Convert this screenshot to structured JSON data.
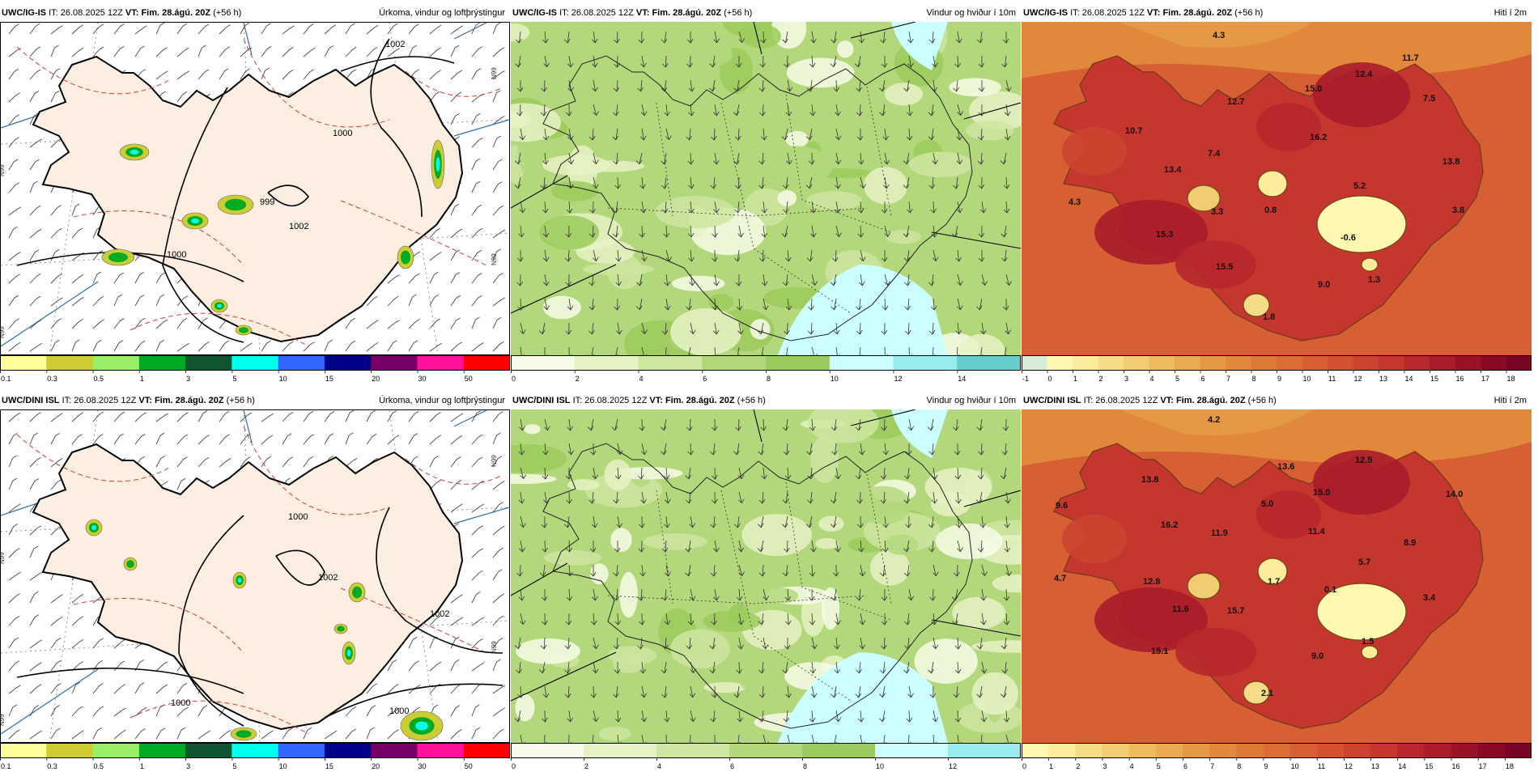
{
  "panels": [
    {
      "id": "p1",
      "model": "UWC/IG-IS",
      "it_label": "IT:",
      "it_value": "26.08.2025 12Z",
      "vt_label": "VT:",
      "vt_value": "Fim. 28.ágú. 20Z",
      "lead": "(+56 h)",
      "field": "Úrkoma, vindur og loftþrýstingur",
      "kind": "precip",
      "isobars": [
        "1002",
        "1000",
        "999",
        "1000",
        "1002"
      ],
      "grid_labels": [
        "N99",
        "N99",
        "N99",
        "N99"
      ],
      "colorbar": {
        "labels": [
          "0.1",
          "0.3",
          "0.5",
          "1",
          "3",
          "5",
          "10",
          "15",
          "20",
          "30",
          "50"
        ],
        "colors": [
          "#ffff99",
          "#cccc33",
          "#99ee66",
          "#00aa22",
          "#115533",
          "#00ffee",
          "#3366ff",
          "#000088",
          "#770066",
          "#ff1199",
          "#ff0000"
        ]
      }
    },
    {
      "id": "p2",
      "model": "UWC/IG-IS",
      "it_label": "IT:",
      "it_value": "26.08.2025 12Z",
      "vt_label": "VT:",
      "vt_value": "Fim. 28.ágú. 20Z",
      "lead": "(+56 h)",
      "field": "Vindur og hviður í 10m",
      "kind": "wind",
      "colorbar": {
        "labels": [
          "0",
          "2",
          "4",
          "6",
          "8",
          "10",
          "12",
          "14"
        ],
        "colors": [
          "#f7fbe8",
          "#e6f2c4",
          "#cde6a0",
          "#b3d87c",
          "#9bcb5c",
          "#ccffff",
          "#99ecec",
          "#66cccc"
        ]
      }
    },
    {
      "id": "p3",
      "model": "UWC/IG-IS",
      "it_label": "IT:",
      "it_value": "26.08.2025 12Z",
      "vt_label": "VT:",
      "vt_value": "Fim. 28.ágú. 20Z",
      "lead": "(+56 h)",
      "field": "Hiti í 2m",
      "kind": "temp",
      "values": [
        "4.3",
        "11.7",
        "12.4",
        "15.0",
        "12.7",
        "7.5",
        "10.7",
        "16.2",
        "7.4",
        "13.4",
        "13.8",
        "5.2",
        "4.3",
        "3.3",
        "0.8",
        "3.8",
        "15.3",
        "-0.6",
        "15.5",
        "9.0",
        "1.3",
        "1.8"
      ],
      "colorbar": {
        "labels": [
          "-1",
          "0",
          "1",
          "2",
          "3",
          "4",
          "5",
          "6",
          "7",
          "8",
          "9",
          "10",
          "11",
          "12",
          "13",
          "14",
          "15",
          "16",
          "17",
          "18"
        ],
        "colors": [
          "#d8ead8",
          "#fff8b0",
          "#fbec9c",
          "#f6dc86",
          "#f2cc70",
          "#eebb5e",
          "#eaaa50",
          "#e69944",
          "#e2883c",
          "#de7a38",
          "#da6c36",
          "#d65f34",
          "#d25232",
          "#cc4430",
          "#c4362e",
          "#b8282c",
          "#aa1c2a",
          "#9a1228",
          "#8a0a26",
          "#7a0424"
        ]
      }
    },
    {
      "id": "p4",
      "model": "UWC/DINI ISL",
      "it_label": "IT:",
      "it_value": "26.08.2025 12Z",
      "vt_label": "VT:",
      "vt_value": "Fim. 28.ágú. 20Z",
      "lead": "(+56 h)",
      "field": "Úrkoma, vindur og loftþrýstingur",
      "kind": "precip",
      "isobars": [
        "1002",
        "1000",
        "1002",
        "1000",
        "1000"
      ],
      "grid_labels": [
        "N99",
        "N99",
        "N99",
        "N99"
      ],
      "colorbar": {
        "labels": [
          "0.1",
          "0.3",
          "0.5",
          "1",
          "3",
          "5",
          "10",
          "15",
          "20",
          "30",
          "50"
        ],
        "colors": [
          "#ffff99",
          "#cccc33",
          "#99ee66",
          "#00aa22",
          "#115533",
          "#00ffee",
          "#3366ff",
          "#000088",
          "#770066",
          "#ff1199",
          "#ff0000"
        ]
      }
    },
    {
      "id": "p5",
      "model": "UWC/DINI ISL",
      "it_label": "IT:",
      "it_value": "26.08.2025 12Z",
      "vt_label": "VT:",
      "vt_value": "Fim. 28.ágú. 20Z",
      "lead": "(+56 h)",
      "field": "Vindur og hviður í 10m",
      "kind": "wind",
      "colorbar": {
        "labels": [
          "0",
          "2",
          "4",
          "6",
          "8",
          "10",
          "12"
        ],
        "colors": [
          "#f7fbe8",
          "#e6f2c4",
          "#cde6a0",
          "#b3d87c",
          "#9bcb5c",
          "#ccffff",
          "#99ecec"
        ]
      }
    },
    {
      "id": "p6",
      "model": "UWC/DINI ISL",
      "it_label": "IT:",
      "it_value": "26.08.2025 12Z",
      "vt_label": "VT:",
      "vt_value": "Fim. 28.ágú. 20Z",
      "lead": "(+56 h)",
      "field": "Hiti í 2m",
      "kind": "temp",
      "values": [
        "4.2",
        "12.5",
        "13.6",
        "13.8",
        "15.0",
        "14.0",
        "9.6",
        "5.0",
        "16.2",
        "11.9",
        "11.4",
        "8.9",
        "5.7",
        "4.7",
        "12.8",
        "1.7",
        "0.1",
        "3.4",
        "11.6",
        "15.7",
        "1.5",
        "15.1",
        "9.0",
        "2.1"
      ],
      "colorbar": {
        "labels": [
          "0",
          "1",
          "2",
          "3",
          "4",
          "5",
          "6",
          "7",
          "8",
          "9",
          "10",
          "11",
          "12",
          "13",
          "14",
          "15",
          "16",
          "17",
          "18"
        ],
        "colors": [
          "#fff8b0",
          "#fbec9c",
          "#f6dc86",
          "#f2cc70",
          "#eebb5e",
          "#eaaa50",
          "#e69944",
          "#e2883c",
          "#de7a38",
          "#da6c36",
          "#d65f34",
          "#d25232",
          "#cc4430",
          "#c4362e",
          "#b8282c",
          "#aa1c2a",
          "#9a1228",
          "#8a0a26",
          "#7a0424"
        ]
      }
    }
  ]
}
